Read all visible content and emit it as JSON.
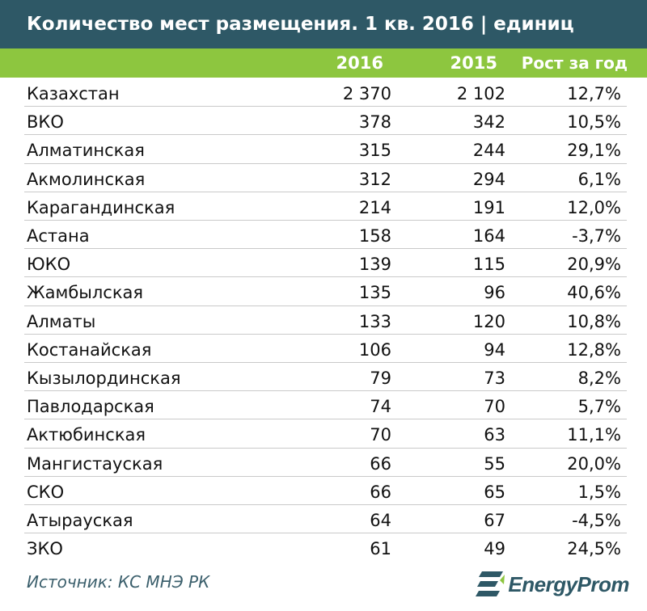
{
  "title": "Количество мест размещения. 1 кв. 2016 | единиц",
  "source": "Источник: КС МНЭ РК",
  "brand": "EnergyProm",
  "colors": {
    "title_bg": "#2e5866",
    "header_bg": "#8dc63f",
    "brand": "#2e5866"
  },
  "chart_data": {
    "type": "table",
    "title": "Количество мест размещения. 1 кв. 2016 | единиц",
    "columns": [
      "",
      "2016",
      "2015",
      "Рост за год"
    ],
    "rows": [
      {
        "region": "Казахстан",
        "y2016": "2 370",
        "y2015": "2 102",
        "growth": "12,7%"
      },
      {
        "region": "ВКО",
        "y2016": "378",
        "y2015": "342",
        "growth": "10,5%"
      },
      {
        "region": "Алматинская",
        "y2016": "315",
        "y2015": "244",
        "growth": "29,1%"
      },
      {
        "region": "Акмолинская",
        "y2016": "312",
        "y2015": "294",
        "growth": "6,1%"
      },
      {
        "region": "Карагандинская",
        "y2016": "214",
        "y2015": "191",
        "growth": "12,0%"
      },
      {
        "region": "Астана",
        "y2016": "158",
        "y2015": "164",
        "growth": "-3,7%"
      },
      {
        "region": "ЮКО",
        "y2016": "139",
        "y2015": "115",
        "growth": "20,9%"
      },
      {
        "region": "Жамбылская",
        "y2016": "135",
        "y2015": "96",
        "growth": "40,6%"
      },
      {
        "region": "Алматы",
        "y2016": "133",
        "y2015": "120",
        "growth": "10,8%"
      },
      {
        "region": "Костанайская",
        "y2016": "106",
        "y2015": "94",
        "growth": "12,8%"
      },
      {
        "region": "Кызылординская",
        "y2016": "79",
        "y2015": "73",
        "growth": "8,2%"
      },
      {
        "region": "Павлодарская",
        "y2016": "74",
        "y2015": "70",
        "growth": "5,7%"
      },
      {
        "region": "Актюбинская",
        "y2016": "70",
        "y2015": "63",
        "growth": "11,1%"
      },
      {
        "region": "Мангистауская",
        "y2016": "66",
        "y2015": "55",
        "growth": "20,0%"
      },
      {
        "region": "СКО",
        "y2016": "66",
        "y2015": "65",
        "growth": "1,5%"
      },
      {
        "region": "Атырауская",
        "y2016": "64",
        "y2015": "67",
        "growth": "-4,5%"
      },
      {
        "region": "ЗКО",
        "y2016": "61",
        "y2015": "49",
        "growth": "24,5%"
      }
    ]
  }
}
